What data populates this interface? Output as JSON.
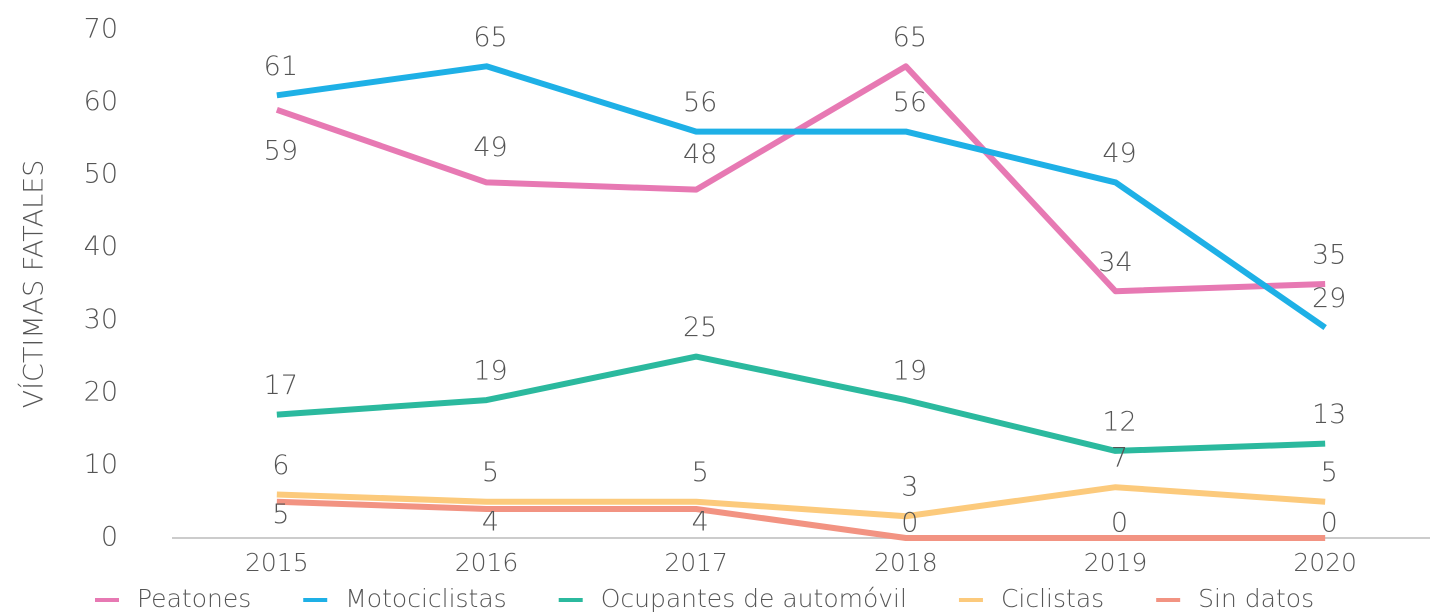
{
  "chart_data": {
    "type": "line",
    "y_axis_label": "VÍCTIMAS FATALES",
    "categories": [
      "2015",
      "2016",
      "2017",
      "2018",
      "2019",
      "2020"
    ],
    "series": [
      {
        "name": "Peatones",
        "color": "#e779b3",
        "values": [
          59,
          49,
          48,
          65,
          34,
          35
        ]
      },
      {
        "name": "Motociclistas",
        "color": "#1eb0e6",
        "values": [
          61,
          65,
          56,
          56,
          49,
          29
        ]
      },
      {
        "name": "Ocupantes de automóvil",
        "color": "#2bb99e",
        "values": [
          17,
          19,
          25,
          19,
          12,
          13
        ]
      },
      {
        "name": "Ciclistas",
        "color": "#fcca7c",
        "values": [
          6,
          5,
          5,
          3,
          7,
          5
        ]
      },
      {
        "name": "Sin datos",
        "color": "#f29382",
        "values": [
          5,
          4,
          4,
          0,
          0,
          0
        ]
      }
    ],
    "ylim": [
      0,
      70
    ],
    "yticks": [
      0,
      10,
      20,
      30,
      40,
      50,
      60,
      70
    ],
    "legend": "bottom"
  }
}
